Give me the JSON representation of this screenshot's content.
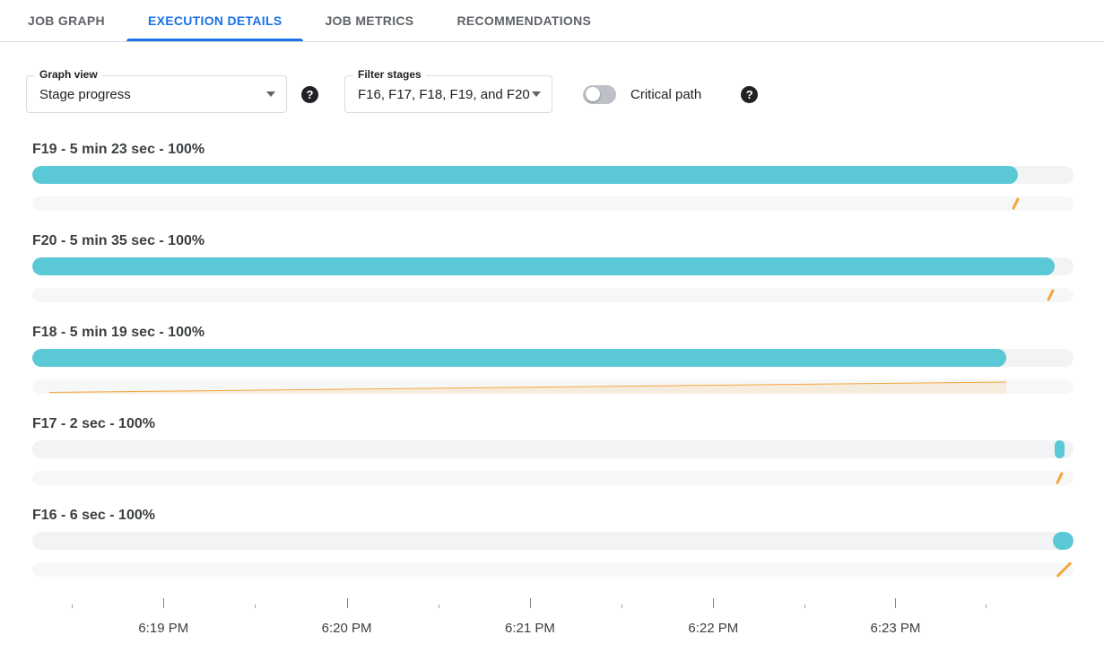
{
  "tabs": [
    {
      "label": "JOB GRAPH",
      "active": false
    },
    {
      "label": "EXECUTION DETAILS",
      "active": true
    },
    {
      "label": "JOB METRICS",
      "active": false
    },
    {
      "label": "RECOMMENDATIONS",
      "active": false
    }
  ],
  "controls": {
    "graph_view": {
      "label": "Graph view",
      "value": "Stage progress"
    },
    "filter_stages": {
      "label": "Filter stages",
      "value": "F16, F17, F18, F19, and F20"
    },
    "critical_path": {
      "label": "Critical path",
      "enabled": false
    },
    "help_icon_glyph": "?"
  },
  "colors": {
    "accent": "#1a73e8",
    "progress_teal": "#5bc8d5",
    "marker_orange": "#f5a53c",
    "track_gray": "#f1f3f4"
  },
  "chart_data": {
    "type": "bar",
    "title": "Stage progress",
    "x_axis_labels": [
      "6:19 PM",
      "6:20 PM",
      "6:21 PM",
      "6:22 PM",
      "6:23 PM"
    ],
    "stages": [
      {
        "name": "F19",
        "duration": "5 min 23 sec",
        "percent": 100
      },
      {
        "name": "F20",
        "duration": "5 min 35 sec",
        "percent": 100
      },
      {
        "name": "F18",
        "duration": "5 min 19 sec",
        "percent": 100
      },
      {
        "name": "F17",
        "duration": "2 sec",
        "percent": 100
      },
      {
        "name": "F16",
        "duration": "6 sec",
        "percent": 100
      }
    ]
  },
  "stages": [
    {
      "label": "F19 - 5 min 23 sec - 100%",
      "bar": {
        "left_pct": 0,
        "width_pct": 94.7
      },
      "marker": {
        "type": "tick",
        "pos_pct": 94.3,
        "variant": "normal"
      }
    },
    {
      "label": "F20 - 5 min 35 sec - 100%",
      "bar": {
        "left_pct": 0,
        "width_pct": 98.2
      },
      "marker": {
        "type": "tick",
        "pos_pct": 97.7,
        "variant": "normal"
      }
    },
    {
      "label": "F18 - 5 min 19 sec - 100%",
      "bar": {
        "left_pct": 0,
        "width_pct": 93.5
      },
      "marker": {
        "type": "area",
        "start_pct": 1.6,
        "end_pct": 93.5
      }
    },
    {
      "label": "F17 - 2 sec - 100%",
      "bar": {
        "left_pct": 98.2,
        "width_pct": 0.9
      },
      "marker": {
        "type": "tick",
        "pos_pct": 98.5,
        "variant": "normal"
      }
    },
    {
      "label": "F16 - 6 sec - 100%",
      "bar": {
        "left_pct": 98.0,
        "width_pct": 2.0
      },
      "marker": {
        "type": "tick",
        "pos_pct": 99.0,
        "variant": "long"
      }
    }
  ],
  "time_axis": {
    "major_ticks": [
      {
        "label": "6:19 PM",
        "pos_pct": 12.6
      },
      {
        "label": "6:20 PM",
        "pos_pct": 30.2
      },
      {
        "label": "6:21 PM",
        "pos_pct": 47.8
      },
      {
        "label": "6:22 PM",
        "pos_pct": 65.4
      },
      {
        "label": "6:23 PM",
        "pos_pct": 82.9
      }
    ],
    "minor_ticks_pct": [
      3.8,
      21.4,
      39.0,
      56.6,
      74.2,
      91.6
    ]
  }
}
